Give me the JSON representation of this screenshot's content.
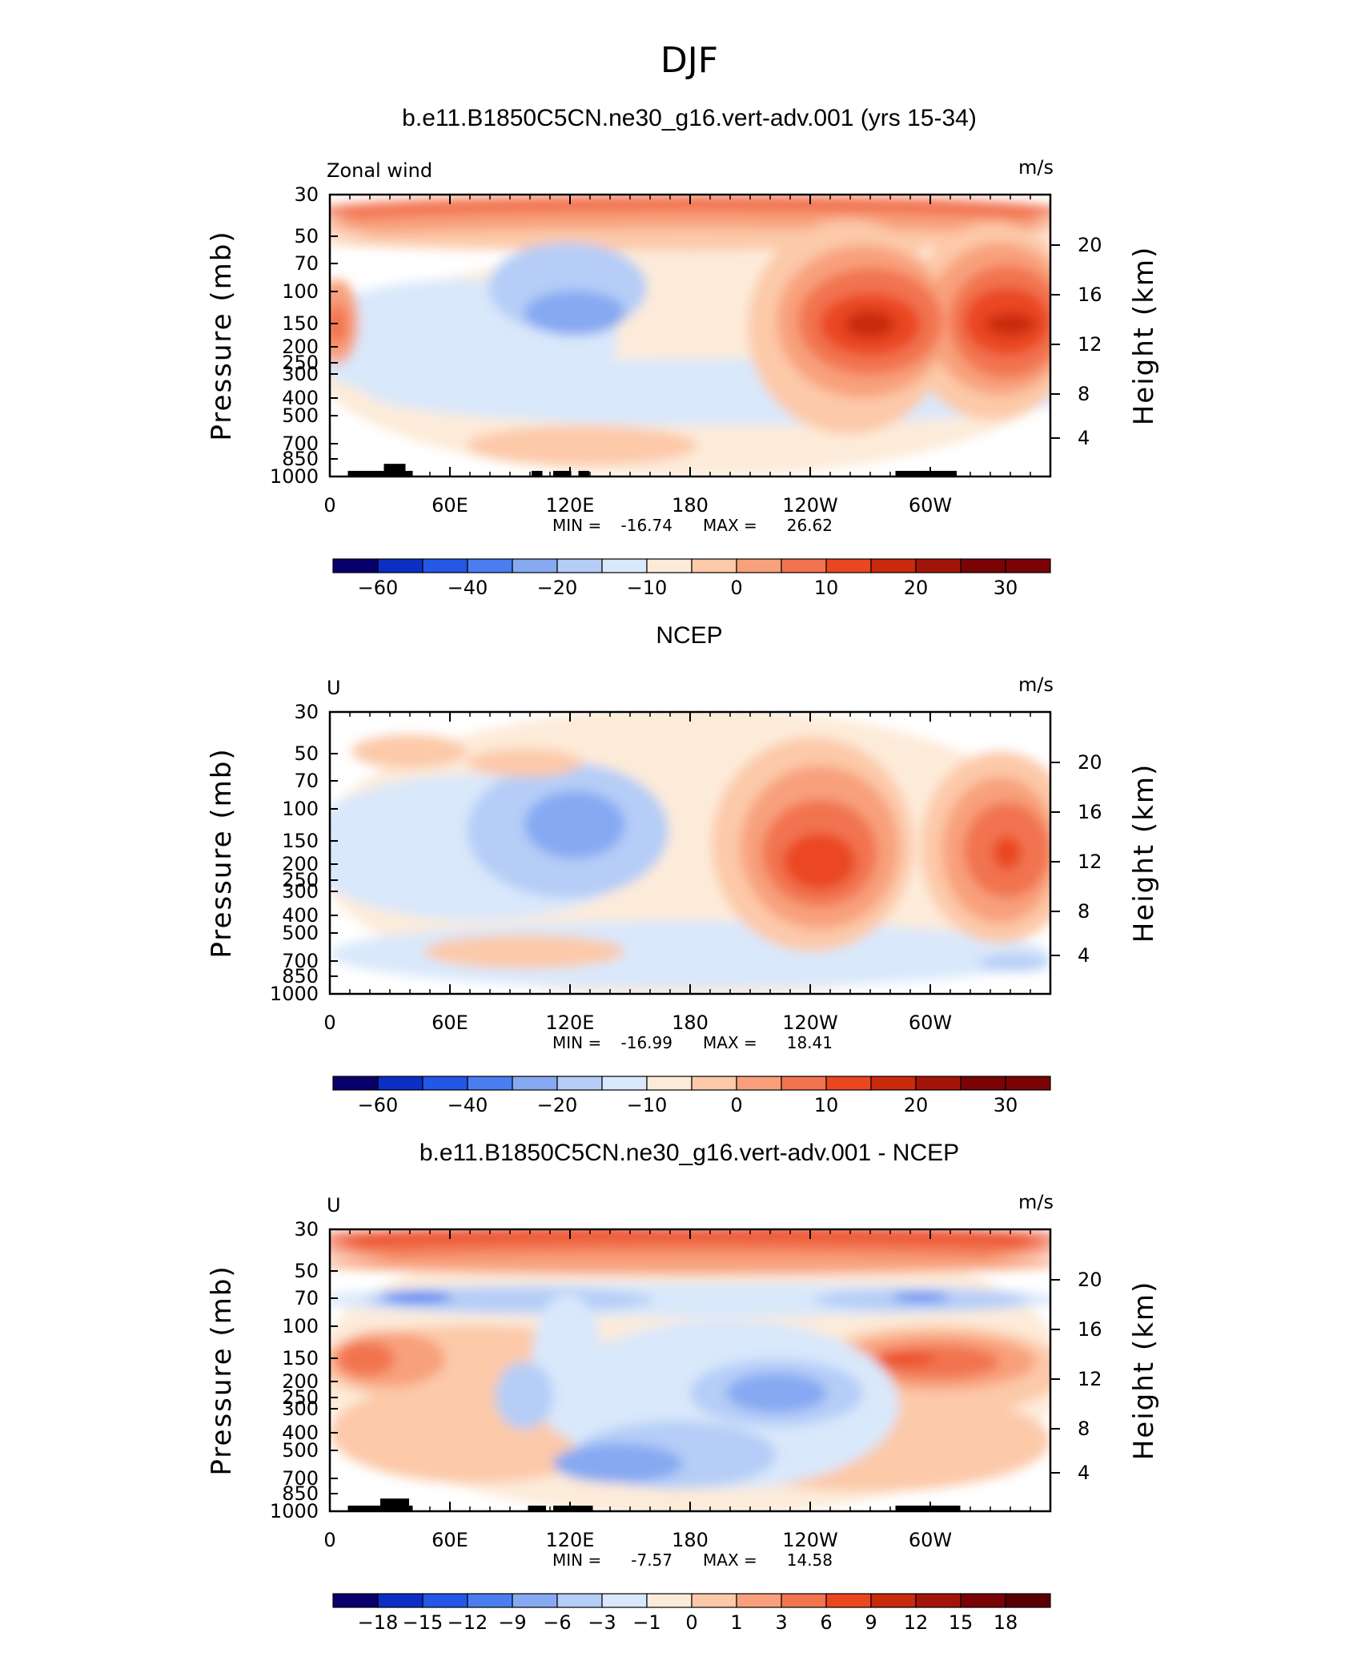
{
  "main_title": "DJF",
  "chart_data": [
    {
      "type": "heatmap",
      "title": "b.e11.B1850C5CN.ne30_g16.vert-adv.001 (yrs 15-34)",
      "left_label": "Zonal wind",
      "units": "m/s",
      "ylabel_left": "Pressure (mb)",
      "ylabel_right": "Height (km)",
      "x_ticks": [
        "0",
        "60E",
        "120E",
        "180",
        "120W",
        "60W"
      ],
      "y_ticks": [
        "30",
        "50",
        "70",
        "100",
        "150",
        "200",
        "250",
        "300",
        "400",
        "500",
        "700",
        "850",
        "1000"
      ],
      "height_ticks": [
        "20",
        "16",
        "12",
        "8",
        "4"
      ],
      "stats": {
        "min_label": "MIN =",
        "min": "-16.74",
        "max_label": "MAX =",
        "max": "26.62"
      },
      "levels": [
        "-60",
        "-40",
        "-20",
        "-10",
        "0",
        "10",
        "20",
        "30"
      ],
      "color_scale": [
        "#08006b",
        "#0c2ec4",
        "#2457e6",
        "#4a7ef0",
        "#86a9f2",
        "#b5cdf7",
        "#d9e8fb",
        "#fdebd9",
        "#fcc9a9",
        "#f8a07c",
        "#f27350",
        "#ea4721",
        "#c92a0c",
        "#a3150a",
        "#7a0306"
      ]
    },
    {
      "type": "heatmap",
      "title": "NCEP",
      "left_label": "U",
      "units": "m/s",
      "ylabel_left": "Pressure (mb)",
      "ylabel_right": "Height (km)",
      "x_ticks": [
        "0",
        "60E",
        "120E",
        "180",
        "120W",
        "60W"
      ],
      "y_ticks": [
        "30",
        "50",
        "70",
        "100",
        "150",
        "200",
        "250",
        "300",
        "400",
        "500",
        "700",
        "850",
        "1000"
      ],
      "height_ticks": [
        "20",
        "16",
        "12",
        "8",
        "4"
      ],
      "stats": {
        "min_label": "MIN =",
        "min": "-16.99",
        "max_label": "MAX =",
        "max": "18.41"
      },
      "levels": [
        "-60",
        "-40",
        "-20",
        "-10",
        "0",
        "10",
        "20",
        "30"
      ],
      "color_scale": [
        "#08006b",
        "#0c2ec4",
        "#2457e6",
        "#4a7ef0",
        "#86a9f2",
        "#b5cdf7",
        "#d9e8fb",
        "#fdebd9",
        "#fcc9a9",
        "#f8a07c",
        "#f27350",
        "#ea4721",
        "#c92a0c",
        "#a3150a",
        "#7a0306"
      ]
    },
    {
      "type": "heatmap",
      "title": "b.e11.B1850C5CN.ne30_g16.vert-adv.001 - NCEP",
      "left_label": "U",
      "units": "m/s",
      "ylabel_left": "Pressure (mb)",
      "ylabel_right": "Height (km)",
      "x_ticks": [
        "0",
        "60E",
        "120E",
        "180",
        "120W",
        "60W"
      ],
      "y_ticks": [
        "30",
        "50",
        "70",
        "100",
        "150",
        "200",
        "250",
        "300",
        "400",
        "500",
        "700",
        "850",
        "1000"
      ],
      "height_ticks": [
        "20",
        "16",
        "12",
        "8",
        "4"
      ],
      "stats": {
        "min_label": "MIN =",
        "min": "-7.57",
        "max_label": "MAX =",
        "max": "14.58"
      },
      "levels": [
        "-18",
        "-15",
        "-12",
        "-9",
        "-6",
        "-3",
        "-1",
        "0",
        "1",
        "3",
        "6",
        "9",
        "12",
        "15",
        "18"
      ],
      "color_scale": [
        "#08006b",
        "#0c2ec4",
        "#2457e6",
        "#4a7ef0",
        "#86a9f2",
        "#b5cdf7",
        "#d9e8fb",
        "#fdebd9",
        "#fcc9a9",
        "#f8a07c",
        "#f27350",
        "#ea4721",
        "#c92a0c",
        "#a3150a",
        "#7a0306",
        "#5a0004"
      ]
    }
  ]
}
